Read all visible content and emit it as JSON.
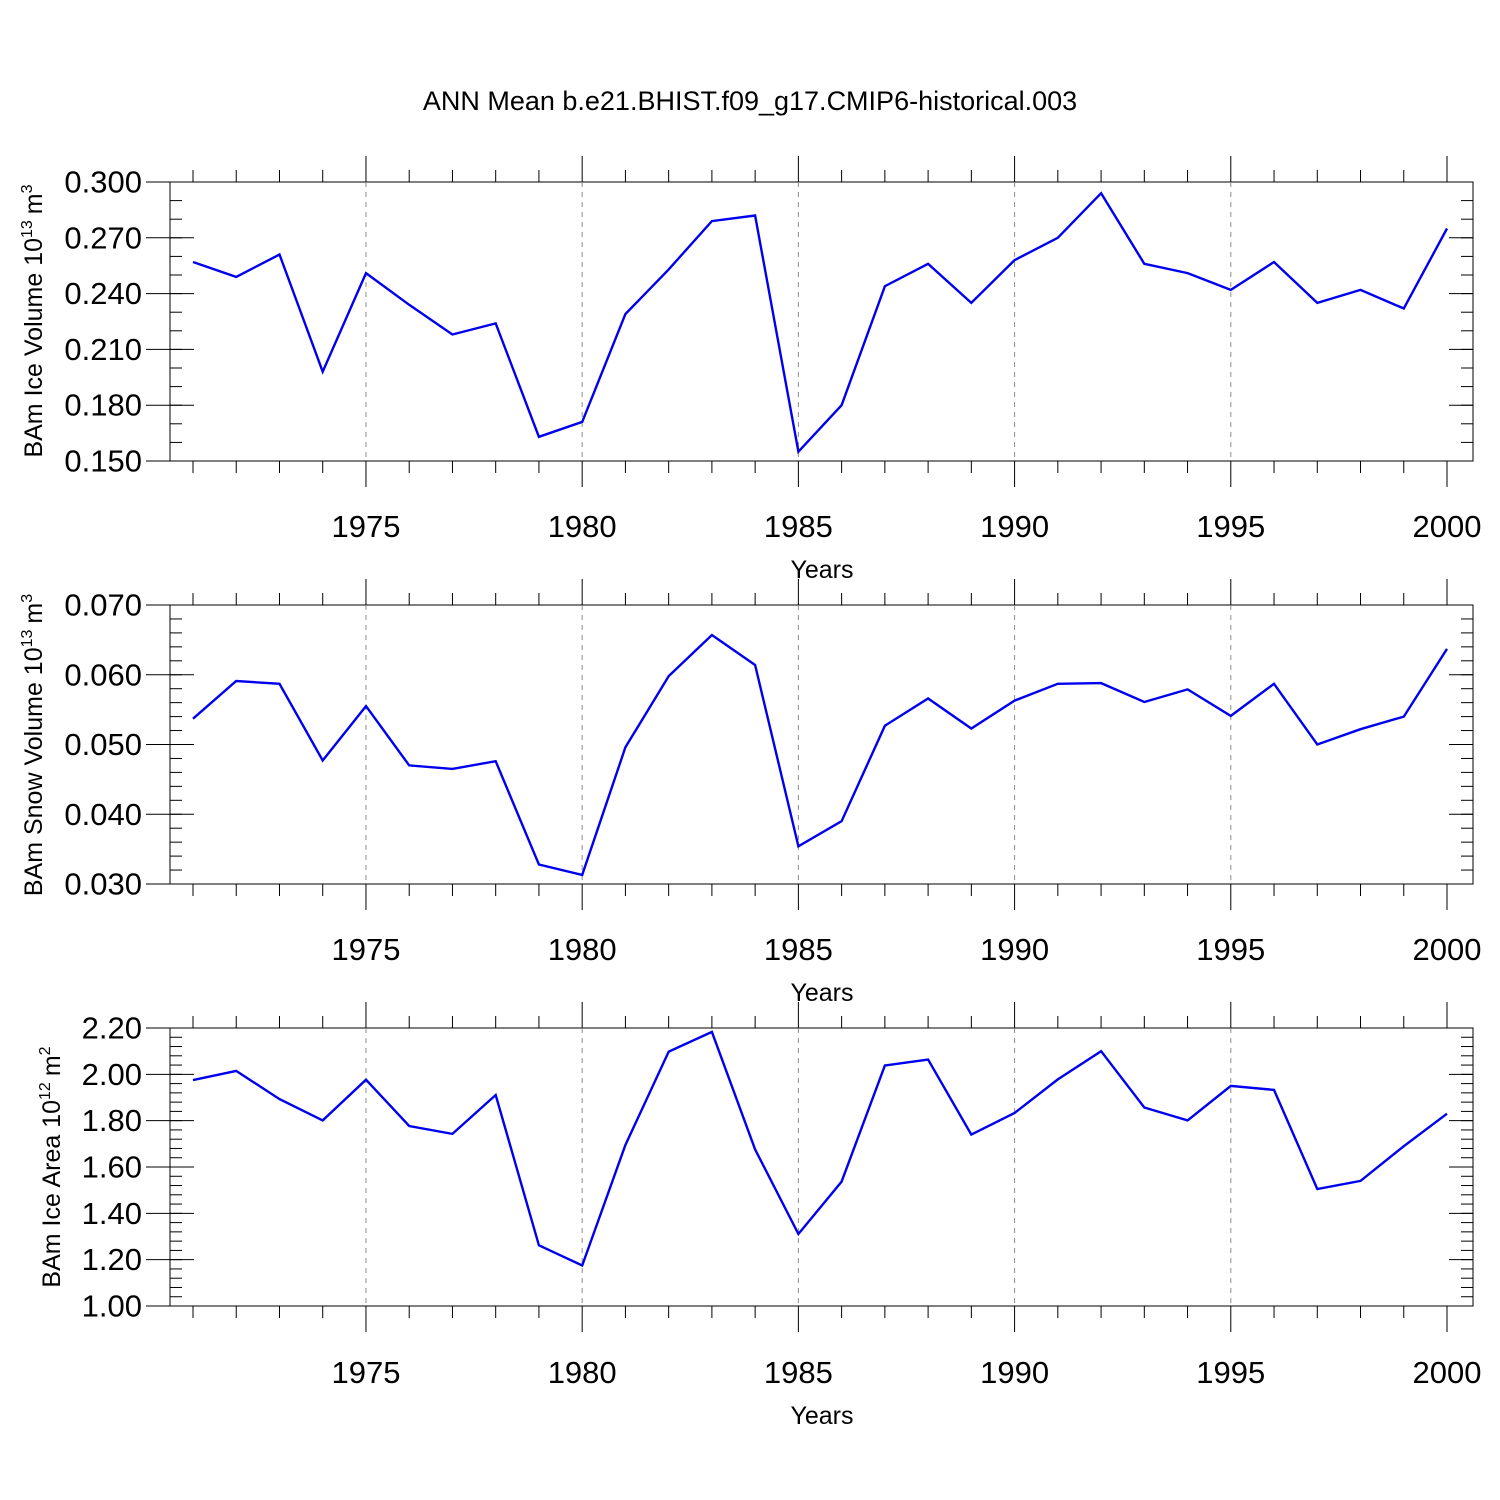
{
  "figure_title": "ANN Mean b.e21.BHIST.f09_g17.CMIP6-historical.003",
  "chart_data": [
    {
      "type": "line",
      "title": "ANN Mean b.e21.BHIST.f09_g17.CMIP6-historical.003",
      "ylabel": "BAm Ice Volume 10",
      "ylabel_exp": "13",
      "ylabel_unit": "m",
      "ylabel_unit_exp": "3",
      "xlabel": "Years",
      "xlim": [
        1971,
        2000
      ],
      "ylim": [
        0.15,
        0.3
      ],
      "yticks": [
        0.15,
        0.18,
        0.21,
        0.24,
        0.27,
        0.3
      ],
      "ytick_labels": [
        "0.150",
        "0.180",
        "0.210",
        "0.240",
        "0.270",
        "0.300"
      ],
      "yminor_step": 0.01,
      "xticks": [
        1975,
        1980,
        1985,
        1990,
        1995,
        2000
      ],
      "xtick_labels": [
        "1975",
        "1980",
        "1985",
        "1990",
        "1995",
        "2000"
      ],
      "series": [
        {
          "name": "BAm Ice Volume",
          "color": "#0000ee",
          "x": [
            1971,
            1972,
            1973,
            1974,
            1975,
            1976,
            1977,
            1978,
            1979,
            1980,
            1981,
            1982,
            1983,
            1984,
            1985,
            1986,
            1987,
            1988,
            1989,
            1990,
            1991,
            1992,
            1993,
            1994,
            1995,
            1996,
            1997,
            1998,
            1999,
            2000
          ],
          "values": [
            0.257,
            0.249,
            0.261,
            0.198,
            0.251,
            0.234,
            0.218,
            0.224,
            0.163,
            0.171,
            0.229,
            0.253,
            0.279,
            0.282,
            0.155,
            0.18,
            0.244,
            0.256,
            0.235,
            0.258,
            0.27,
            0.294,
            0.256,
            0.251,
            0.242,
            0.257,
            0.235,
            0.242,
            0.232,
            0.275
          ]
        }
      ]
    },
    {
      "type": "line",
      "ylabel": "BAm Snow Volume 10",
      "ylabel_exp": "13",
      "ylabel_unit": "m",
      "ylabel_unit_exp": "3",
      "xlabel": "Years",
      "xlim": [
        1971,
        2000
      ],
      "ylim": [
        0.03,
        0.07
      ],
      "yticks": [
        0.03,
        0.04,
        0.05,
        0.06,
        0.07
      ],
      "ytick_labels": [
        "0.030",
        "0.040",
        "0.050",
        "0.060",
        "0.070"
      ],
      "yminor_step": 0.002,
      "xticks": [
        1975,
        1980,
        1985,
        1990,
        1995,
        2000
      ],
      "xtick_labels": [
        "1975",
        "1980",
        "1985",
        "1990",
        "1995",
        "2000"
      ],
      "series": [
        {
          "name": "BAm Snow Volume",
          "color": "#0000ee",
          "x": [
            1971,
            1972,
            1973,
            1974,
            1975,
            1976,
            1977,
            1978,
            1979,
            1980,
            1981,
            1982,
            1983,
            1984,
            1985,
            1986,
            1987,
            1988,
            1989,
            1990,
            1991,
            1992,
            1993,
            1994,
            1995,
            1996,
            1997,
            1998,
            1999,
            2000
          ],
          "values": [
            0.0537,
            0.0591,
            0.0587,
            0.0477,
            0.0555,
            0.047,
            0.0465,
            0.0476,
            0.0328,
            0.0313,
            0.0496,
            0.0598,
            0.0657,
            0.0614,
            0.0354,
            0.039,
            0.0527,
            0.0566,
            0.0523,
            0.0563,
            0.0587,
            0.0588,
            0.0561,
            0.0579,
            0.0541,
            0.0587,
            0.05,
            0.0522,
            0.054,
            0.0637
          ]
        }
      ]
    },
    {
      "type": "line",
      "ylabel": "BAm Ice Area 10",
      "ylabel_exp": "12",
      "ylabel_unit": "m",
      "ylabel_unit_exp": "2",
      "xlabel": "Years",
      "xlim": [
        1971,
        2000
      ],
      "ylim": [
        1.0,
        2.2
      ],
      "yticks": [
        1.0,
        1.2,
        1.4,
        1.6,
        1.8,
        2.0,
        2.2
      ],
      "ytick_labels": [
        "1.00",
        "1.20",
        "1.40",
        "1.60",
        "1.80",
        "2.00",
        "2.20"
      ],
      "yminor_step": 0.04,
      "xticks": [
        1975,
        1980,
        1985,
        1990,
        1995,
        2000
      ],
      "xtick_labels": [
        "1975",
        "1980",
        "1985",
        "1990",
        "1995",
        "2000"
      ],
      "series": [
        {
          "name": "BAm Ice Area",
          "color": "#0000ee",
          "x": [
            1971,
            1972,
            1973,
            1974,
            1975,
            1976,
            1977,
            1978,
            1979,
            1980,
            1981,
            1982,
            1983,
            1984,
            1985,
            1986,
            1987,
            1988,
            1989,
            1990,
            1991,
            1992,
            1993,
            1994,
            1995,
            1996,
            1997,
            1998,
            1999,
            2000
          ],
          "values": [
            1.975,
            2.015,
            1.893,
            1.801,
            1.977,
            1.777,
            1.743,
            1.911,
            1.262,
            1.175,
            1.695,
            2.098,
            2.183,
            1.676,
            1.311,
            1.537,
            2.038,
            2.064,
            1.74,
            1.833,
            1.978,
            2.1,
            1.857,
            1.801,
            1.95,
            1.933,
            1.505,
            1.54,
            1.69,
            1.83
          ]
        }
      ]
    }
  ]
}
